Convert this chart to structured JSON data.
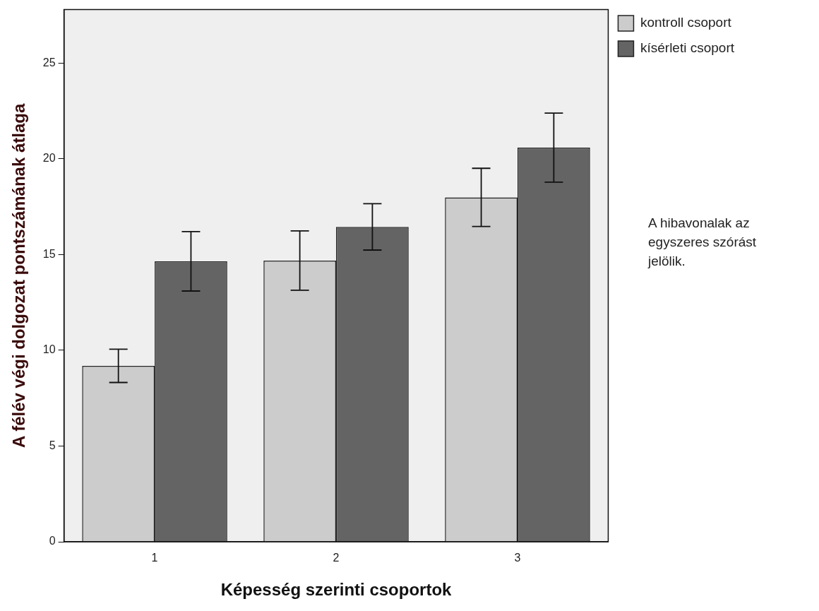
{
  "chart_data": {
    "type": "bar",
    "xlabel": "Képesség szerinti csoportok",
    "ylabel": "A félév végi dolgozat pontszámának átlaga",
    "categories": [
      "1",
      "2",
      "3"
    ],
    "series": [
      {
        "name": "kontroll csoport",
        "color": "#cccccc",
        "values": [
          9.19,
          14.69,
          17.99
        ],
        "errors": [
          0.87,
          1.55,
          1.52
        ]
      },
      {
        "name": "kísérleti csoport",
        "color": "#646464",
        "values": [
          14.65,
          16.45,
          20.59
        ],
        "errors": [
          1.55,
          1.21,
          1.8
        ]
      }
    ],
    "ylim": [
      0,
      27.8
    ],
    "yticks": [
      0,
      5,
      10,
      15,
      20,
      25
    ],
    "grid": false,
    "legend": "top right",
    "annotations": [
      "A hibavonalak az egyszeres szórást jelölik."
    ]
  }
}
